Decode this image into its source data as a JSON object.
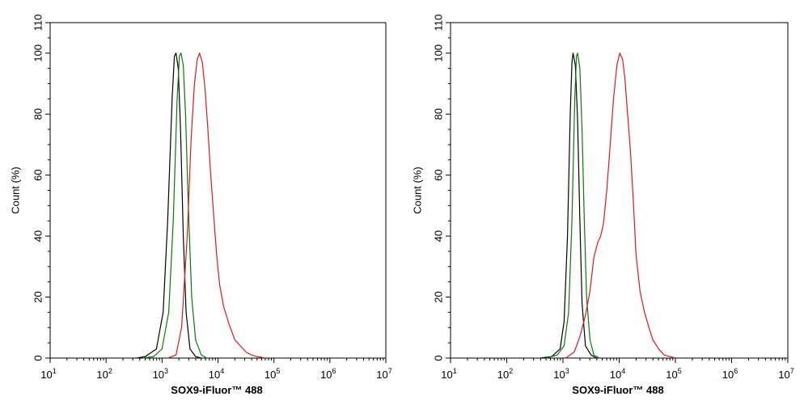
{
  "chart_data": [
    {
      "type": "line",
      "title": "",
      "xlabel": "SOX9-iFluor™ 488",
      "ylabel": "Count  (%)",
      "x_scale": "log",
      "xlim_exp": [
        1,
        7
      ],
      "ylim": [
        0,
        110
      ],
      "x_ticks": [
        {
          "base": "10",
          "exp": "1"
        },
        {
          "base": "10",
          "exp": "2"
        },
        {
          "base": "10",
          "exp": "3"
        },
        {
          "base": "10",
          "exp": "4"
        },
        {
          "base": "10",
          "exp": "5"
        },
        {
          "base": "10",
          "exp": "6"
        },
        {
          "base": "10",
          "exp": "7"
        }
      ],
      "y_ticks": [
        "0",
        "20",
        "40",
        "60",
        "80",
        "100",
        "110"
      ],
      "series": [
        {
          "name": "black",
          "color": "#000000",
          "points": [
            [
              2.55,
              0
            ],
            [
              2.7,
              0.5
            ],
            [
              2.9,
              3
            ],
            [
              3.02,
              15
            ],
            [
              3.1,
              45
            ],
            [
              3.18,
              85
            ],
            [
              3.22,
              99
            ],
            [
              3.25,
              100
            ],
            [
              3.29,
              95
            ],
            [
              3.33,
              75
            ],
            [
              3.38,
              40
            ],
            [
              3.43,
              15
            ],
            [
              3.5,
              3
            ],
            [
              3.6,
              0.5
            ],
            [
              3.7,
              0
            ]
          ]
        },
        {
          "name": "green",
          "color": "#0a7a0a",
          "points": [
            [
              2.65,
              0
            ],
            [
              2.85,
              0.5
            ],
            [
              3.0,
              3
            ],
            [
              3.12,
              15
            ],
            [
              3.2,
              45
            ],
            [
              3.27,
              85
            ],
            [
              3.31,
              99
            ],
            [
              3.34,
              100
            ],
            [
              3.38,
              96
            ],
            [
              3.42,
              80
            ],
            [
              3.47,
              50
            ],
            [
              3.53,
              20
            ],
            [
              3.6,
              6
            ],
            [
              3.7,
              1
            ],
            [
              3.8,
              0
            ]
          ]
        },
        {
          "name": "red",
          "color": "#e01919",
          "points": [
            [
              3.1,
              0
            ],
            [
              3.25,
              1
            ],
            [
              3.35,
              10
            ],
            [
              3.45,
              40
            ],
            [
              3.52,
              72
            ],
            [
              3.58,
              90
            ],
            [
              3.63,
              98
            ],
            [
              3.67,
              100
            ],
            [
              3.72,
              97
            ],
            [
              3.77,
              88
            ],
            [
              3.82,
              75
            ],
            [
              3.87,
              60
            ],
            [
              3.93,
              45
            ],
            [
              3.98,
              33
            ],
            [
              4.03,
              24
            ],
            [
              4.1,
              17
            ],
            [
              4.2,
              11
            ],
            [
              4.3,
              6
            ],
            [
              4.4,
              4
            ],
            [
              4.5,
              2
            ],
            [
              4.6,
              1
            ],
            [
              4.7,
              0.5
            ],
            [
              4.85,
              0
            ]
          ]
        }
      ]
    },
    {
      "type": "line",
      "title": "",
      "xlabel": "SOX9-iFluor™ 488",
      "ylabel": "Count  (%)",
      "x_scale": "log",
      "xlim_exp": [
        1,
        7
      ],
      "ylim": [
        0,
        110
      ],
      "x_ticks": [
        {
          "base": "10",
          "exp": "1"
        },
        {
          "base": "10",
          "exp": "2"
        },
        {
          "base": "10",
          "exp": "3"
        },
        {
          "base": "10",
          "exp": "4"
        },
        {
          "base": "10",
          "exp": "5"
        },
        {
          "base": "10",
          "exp": "6"
        },
        {
          "base": "10",
          "exp": "7"
        }
      ],
      "y_ticks": [
        "0",
        "20",
        "40",
        "60",
        "80",
        "100",
        "110"
      ],
      "series": [
        {
          "name": "black",
          "color": "#000000",
          "points": [
            [
              2.6,
              0
            ],
            [
              2.8,
              0.5
            ],
            [
              2.95,
              3
            ],
            [
              3.02,
              12
            ],
            [
              3.08,
              40
            ],
            [
              3.13,
              80
            ],
            [
              3.16,
              97
            ],
            [
              3.18,
              100
            ],
            [
              3.22,
              96
            ],
            [
              3.26,
              78
            ],
            [
              3.3,
              45
            ],
            [
              3.34,
              18
            ],
            [
              3.4,
              4
            ],
            [
              3.5,
              1
            ],
            [
              3.6,
              0
            ]
          ]
        },
        {
          "name": "green",
          "color": "#0a7a0a",
          "points": [
            [
              2.7,
              0
            ],
            [
              2.9,
              1
            ],
            [
              3.02,
              4
            ],
            [
              3.1,
              15
            ],
            [
              3.16,
              45
            ],
            [
              3.21,
              85
            ],
            [
              3.24,
              99
            ],
            [
              3.26,
              100
            ],
            [
              3.3,
              95
            ],
            [
              3.34,
              75
            ],
            [
              3.38,
              45
            ],
            [
              3.42,
              20
            ],
            [
              3.48,
              6
            ],
            [
              3.55,
              1
            ],
            [
              3.65,
              0
            ]
          ]
        },
        {
          "name": "red",
          "color": "#e01919",
          "points": [
            [
              3.05,
              0
            ],
            [
              3.2,
              2
            ],
            [
              3.3,
              7
            ],
            [
              3.4,
              14
            ],
            [
              3.48,
              22
            ],
            [
              3.55,
              33
            ],
            [
              3.62,
              38
            ],
            [
              3.67,
              40
            ],
            [
              3.72,
              44
            ],
            [
              3.78,
              55
            ],
            [
              3.84,
              70
            ],
            [
              3.9,
              85
            ],
            [
              3.96,
              96
            ],
            [
              4.01,
              100
            ],
            [
              4.06,
              98
            ],
            [
              4.1,
              92
            ],
            [
              4.15,
              80
            ],
            [
              4.2,
              68
            ],
            [
              4.25,
              52
            ],
            [
              4.3,
              34
            ],
            [
              4.37,
              22
            ],
            [
              4.45,
              15
            ],
            [
              4.53,
              10
            ],
            [
              4.6,
              6
            ],
            [
              4.7,
              3
            ],
            [
              4.8,
              1
            ],
            [
              4.9,
              0.5
            ],
            [
              5.0,
              0
            ]
          ]
        }
      ]
    }
  ]
}
